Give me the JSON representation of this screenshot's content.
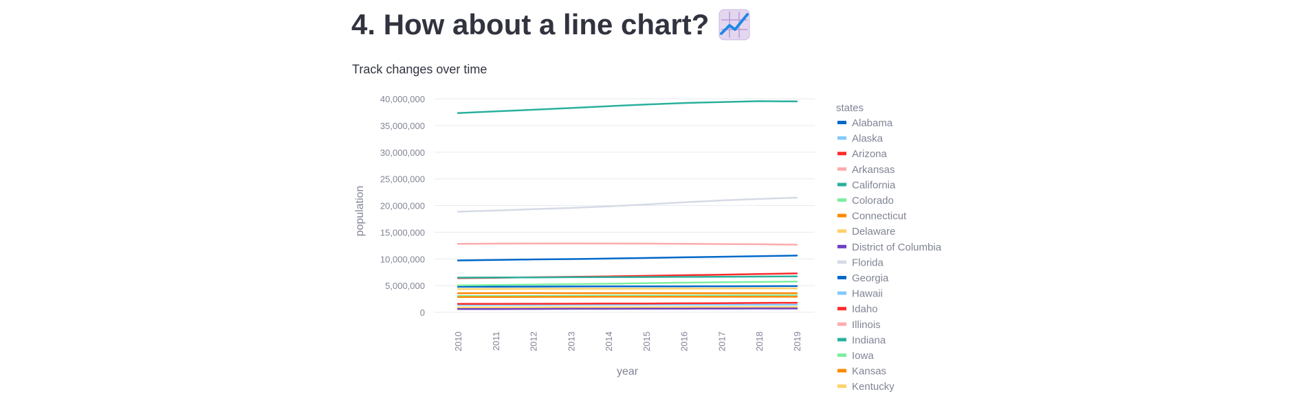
{
  "header": {
    "title": "4. How about a line chart?",
    "title_icon": "chart-increasing-icon",
    "subtitle": "Track changes over time"
  },
  "colors": {
    "text": "#31333f",
    "axis_text": "#808495",
    "grid": "#e6eaf1"
  },
  "chart_data": {
    "type": "line",
    "xlabel": "year",
    "ylabel": "population",
    "ylim": [
      0,
      40000000
    ],
    "y_ticks": [
      "0",
      "5,000,000",
      "10,000,000",
      "15,000,000",
      "20,000,000",
      "25,000,000",
      "30,000,000",
      "35,000,000",
      "40,000,000"
    ],
    "x": [
      "2010",
      "2011",
      "2012",
      "2013",
      "2014",
      "2015",
      "2016",
      "2017",
      "2018",
      "2019"
    ],
    "grid": true,
    "legend_title": "states",
    "legend_position": "right",
    "series": [
      {
        "name": "Alabama",
        "color": "#0068c9",
        "values": [
          4785000,
          4799000,
          4816000,
          4831000,
          4843000,
          4853000,
          4863000,
          4874000,
          4888000,
          4903000
        ]
      },
      {
        "name": "Alaska",
        "color": "#83c9ff",
        "values": [
          714000,
          722000,
          731000,
          737000,
          737000,
          738000,
          742000,
          740000,
          736000,
          731000
        ]
      },
      {
        "name": "Arizona",
        "color": "#ff2b2b",
        "values": [
          6408000,
          6473000,
          6557000,
          6635000,
          6733000,
          6833000,
          6945000,
          7048000,
          7172000,
          7278000
        ]
      },
      {
        "name": "Arkansas",
        "color": "#ffabab",
        "values": [
          2922000,
          2939000,
          2950000,
          2958000,
          2967000,
          2979000,
          2991000,
          3004000,
          3013000,
          3018000
        ]
      },
      {
        "name": "California",
        "color": "#29b09d",
        "values": [
          37320000,
          37640000,
          37960000,
          38280000,
          38630000,
          38950000,
          39210000,
          39400000,
          39560000,
          39510000
        ]
      },
      {
        "name": "Colorado",
        "color": "#7defa1",
        "values": [
          5048000,
          5119000,
          5191000,
          5269000,
          5351000,
          5453000,
          5540000,
          5616000,
          5696000,
          5759000
        ]
      },
      {
        "name": "Connecticut",
        "color": "#ff8700",
        "values": [
          3580000,
          3592000,
          3595000,
          3594000,
          3594000,
          3588000,
          3579000,
          3573000,
          3572000,
          3565000
        ]
      },
      {
        "name": "Delaware",
        "color": "#ffd16a",
        "values": [
          900000,
          908000,
          917000,
          925000,
          935000,
          944000,
          953000,
          962000,
          967000,
          973000
        ]
      },
      {
        "name": "District of Columbia",
        "color": "#6d3fc0",
        "values": [
          605000,
          620000,
          635000,
          650000,
          662000,
          675000,
          686000,
          695000,
          702000,
          705000
        ]
      },
      {
        "name": "Florida",
        "color": "#d5dae5",
        "values": [
          18850000,
          19060000,
          19320000,
          19550000,
          19850000,
          20210000,
          20610000,
          20960000,
          21240000,
          21480000
        ]
      },
      {
        "name": "Georgia",
        "color": "#0068c9",
        "values": [
          9712000,
          9803000,
          9901000,
          9972000,
          10070000,
          10180000,
          10300000,
          10410000,
          10510000,
          10620000
        ]
      },
      {
        "name": "Hawaii",
        "color": "#83c9ff",
        "values": [
          1364000,
          1379000,
          1395000,
          1409000,
          1417000,
          1422000,
          1428000,
          1424000,
          1420000,
          1416000
        ]
      },
      {
        "name": "Idaho",
        "color": "#ff2b2b",
        "values": [
          1570000,
          1585000,
          1595000,
          1612000,
          1633000,
          1652000,
          1683000,
          1716000,
          1750000,
          1787000
        ]
      },
      {
        "name": "Illinois",
        "color": "#ffabab",
        "values": [
          12840000,
          12860000,
          12880000,
          12890000,
          12880000,
          12860000,
          12820000,
          12780000,
          12740000,
          12670000
        ]
      },
      {
        "name": "Indiana",
        "color": "#29b09d",
        "values": [
          6490000,
          6516000,
          6538000,
          6570000,
          6597000,
          6609000,
          6634000,
          6666000,
          6692000,
          6732000
        ]
      },
      {
        "name": "Iowa",
        "color": "#7defa1",
        "values": [
          3050000,
          3065000,
          3076000,
          3092000,
          3108000,
          3121000,
          3131000,
          3143000,
          3149000,
          3155000
        ]
      },
      {
        "name": "Kansas",
        "color": "#ff8700",
        "values": [
          2859000,
          2870000,
          2886000,
          2893000,
          2901000,
          2911000,
          2913000,
          2910000,
          2912000,
          2913000
        ]
      },
      {
        "name": "Kentucky",
        "color": "#ffd16a",
        "values": [
          4348000,
          4369000,
          4385000,
          4400000,
          4414000,
          4425000,
          4437000,
          4454000,
          4461000,
          4468000
        ]
      }
    ],
    "legend_more": "..."
  }
}
